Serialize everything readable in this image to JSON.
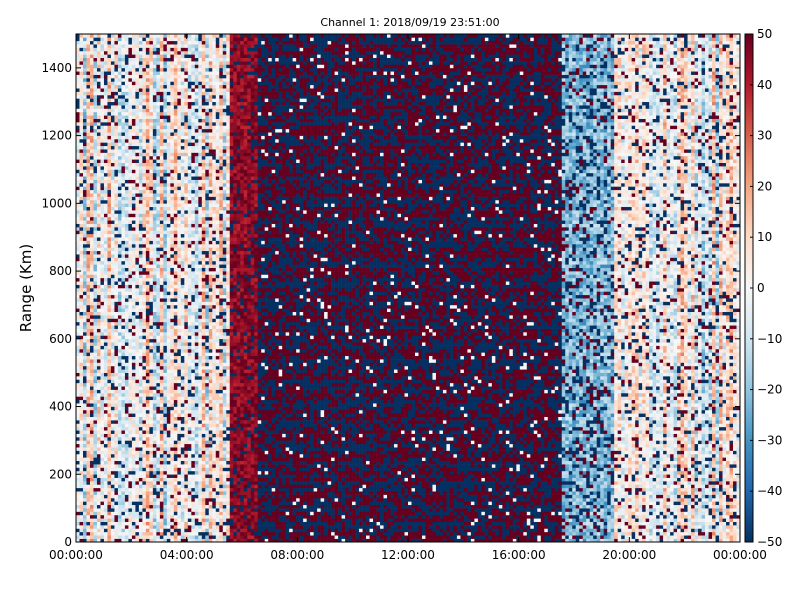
{
  "chart_data": {
    "type": "heatmap",
    "title": "Channel 1: 2018/09/19 23:51:00",
    "ylabel": "Range (Km)",
    "xlabel": "",
    "x_ticks": [
      "00:00:00",
      "04:00:00",
      "08:00:00",
      "12:00:00",
      "16:00:00",
      "20:00:00",
      "00:00:00"
    ],
    "x_range_hours": [
      0,
      24
    ],
    "y_ticks": [
      0,
      200,
      400,
      600,
      800,
      1000,
      1200,
      1400
    ],
    "ylim": [
      0,
      1500
    ],
    "colorbar": {
      "colormap": "RdBu_r",
      "range": [
        -50,
        50
      ],
      "ticks": [
        50,
        40,
        30,
        20,
        10,
        0,
        -10,
        -20,
        -30,
        -40,
        -50
      ],
      "tick_labels": [
        "50",
        "40",
        "30",
        "20",
        "10",
        "0",
        "−10",
        "−20",
        "−30",
        "−40",
        "−50"
      ],
      "colors": [
        "#053061",
        "#2166ac",
        "#4393c3",
        "#92c5de",
        "#d1e5f0",
        "#f7f7f7",
        "#fddbc7",
        "#f4a582",
        "#d6604d",
        "#b2182b",
        "#67001f"
      ]
    },
    "grid": false,
    "description_bands": [
      {
        "from_hour": 0.0,
        "to_hour": 5.6,
        "level": "mixed light noise, alternating light red and light blue stripes"
      },
      {
        "from_hour": 5.6,
        "to_hour": 6.6,
        "level": "strong positive (~+40 to +50)"
      },
      {
        "from_hour": 6.6,
        "to_hour": 17.5,
        "level": "saturated alternating +50 / -50"
      },
      {
        "from_hour": 17.5,
        "to_hour": 19.5,
        "level": "negative (~-10 to -30) with saturated speckle"
      },
      {
        "from_hour": 19.5,
        "to_hour": 24.0,
        "level": "mixed light noise with positive stripes"
      }
    ]
  }
}
